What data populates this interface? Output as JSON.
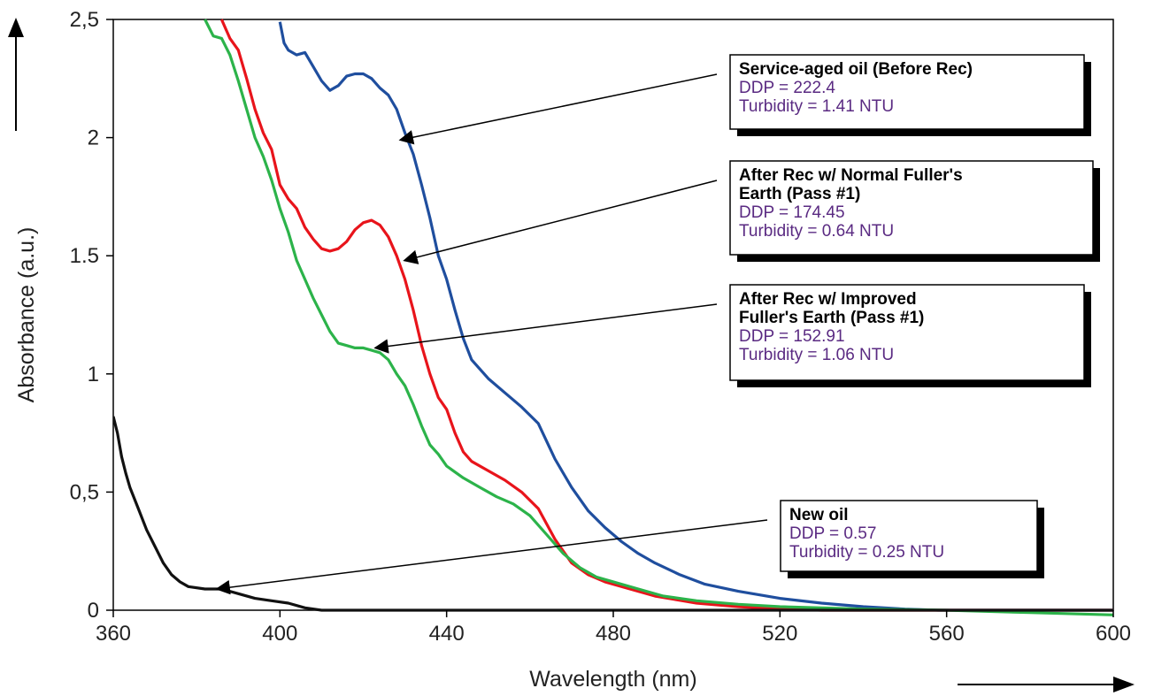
{
  "chart_data": {
    "type": "line",
    "title": "",
    "xlabel": "Wavelength (nm)",
    "ylabel": "Absorbance (a.u.)",
    "xlim": [
      360,
      600
    ],
    "ylim": [
      0,
      2.5
    ],
    "x_ticks": [
      "360",
      "400",
      "440",
      "480",
      "520",
      "560",
      "600"
    ],
    "y_ticks": [
      "0",
      "0,5",
      "1",
      "1.5",
      "2",
      "2,5"
    ],
    "grid": false,
    "series": [
      {
        "color": "#1f4e9e",
        "points": [
          [
            400,
            2.49
          ],
          [
            401,
            2.4
          ],
          [
            402,
            2.37
          ],
          [
            404,
            2.35
          ],
          [
            406,
            2.36
          ],
          [
            408,
            2.3
          ],
          [
            410,
            2.24
          ],
          [
            412,
            2.2
          ],
          [
            414,
            2.22
          ],
          [
            416,
            2.26
          ],
          [
            418,
            2.27
          ],
          [
            420,
            2.27
          ],
          [
            422,
            2.25
          ],
          [
            424,
            2.21
          ],
          [
            426,
            2.18
          ],
          [
            428,
            2.12
          ],
          [
            430,
            2.02
          ],
          [
            432,
            1.93
          ],
          [
            434,
            1.8
          ],
          [
            436,
            1.66
          ],
          [
            438,
            1.5
          ],
          [
            440,
            1.4
          ],
          [
            442,
            1.27
          ],
          [
            444,
            1.15
          ],
          [
            446,
            1.06
          ],
          [
            450,
            0.98
          ],
          [
            454,
            0.92
          ],
          [
            458,
            0.86
          ],
          [
            462,
            0.79
          ],
          [
            466,
            0.64
          ],
          [
            470,
            0.52
          ],
          [
            474,
            0.42
          ],
          [
            478,
            0.35
          ],
          [
            482,
            0.29
          ],
          [
            486,
            0.24
          ],
          [
            490,
            0.2
          ],
          [
            496,
            0.15
          ],
          [
            502,
            0.11
          ],
          [
            510,
            0.08
          ],
          [
            520,
            0.05
          ],
          [
            530,
            0.03
          ],
          [
            540,
            0.015
          ],
          [
            550,
            0.005
          ],
          [
            558,
            0.0
          ],
          [
            600,
            0.0
          ]
        ]
      },
      {
        "color": "#e8141b",
        "points": [
          [
            386,
            2.5
          ],
          [
            388,
            2.42
          ],
          [
            390,
            2.37
          ],
          [
            392,
            2.25
          ],
          [
            394,
            2.12
          ],
          [
            396,
            2.02
          ],
          [
            398,
            1.95
          ],
          [
            400,
            1.8
          ],
          [
            402,
            1.74
          ],
          [
            404,
            1.7
          ],
          [
            406,
            1.62
          ],
          [
            408,
            1.57
          ],
          [
            410,
            1.53
          ],
          [
            412,
            1.52
          ],
          [
            414,
            1.53
          ],
          [
            416,
            1.56
          ],
          [
            418,
            1.61
          ],
          [
            420,
            1.64
          ],
          [
            422,
            1.65
          ],
          [
            424,
            1.63
          ],
          [
            426,
            1.58
          ],
          [
            428,
            1.5
          ],
          [
            430,
            1.4
          ],
          [
            432,
            1.27
          ],
          [
            434,
            1.12
          ],
          [
            436,
            1.0
          ],
          [
            438,
            0.9
          ],
          [
            440,
            0.85
          ],
          [
            442,
            0.75
          ],
          [
            444,
            0.67
          ],
          [
            446,
            0.63
          ],
          [
            450,
            0.59
          ],
          [
            454,
            0.55
          ],
          [
            458,
            0.5
          ],
          [
            462,
            0.43
          ],
          [
            466,
            0.3
          ],
          [
            470,
            0.2
          ],
          [
            474,
            0.15
          ],
          [
            478,
            0.12
          ],
          [
            484,
            0.09
          ],
          [
            490,
            0.06
          ],
          [
            500,
            0.03
          ],
          [
            510,
            0.015
          ],
          [
            520,
            0.005
          ],
          [
            530,
            0.0
          ],
          [
            600,
            0.0
          ]
        ]
      },
      {
        "color": "#2cb34a",
        "points": [
          [
            382,
            2.5
          ],
          [
            384,
            2.43
          ],
          [
            386,
            2.42
          ],
          [
            388,
            2.35
          ],
          [
            390,
            2.24
          ],
          [
            392,
            2.12
          ],
          [
            394,
            2.0
          ],
          [
            396,
            1.92
          ],
          [
            398,
            1.82
          ],
          [
            400,
            1.7
          ],
          [
            402,
            1.6
          ],
          [
            404,
            1.48
          ],
          [
            406,
            1.4
          ],
          [
            408,
            1.32
          ],
          [
            410,
            1.25
          ],
          [
            412,
            1.18
          ],
          [
            414,
            1.13
          ],
          [
            416,
            1.12
          ],
          [
            418,
            1.11
          ],
          [
            420,
            1.11
          ],
          [
            422,
            1.1
          ],
          [
            424,
            1.09
          ],
          [
            426,
            1.06
          ],
          [
            428,
            1.0
          ],
          [
            430,
            0.95
          ],
          [
            432,
            0.87
          ],
          [
            434,
            0.78
          ],
          [
            436,
            0.7
          ],
          [
            438,
            0.66
          ],
          [
            440,
            0.61
          ],
          [
            444,
            0.56
          ],
          [
            448,
            0.52
          ],
          [
            452,
            0.48
          ],
          [
            456,
            0.45
          ],
          [
            460,
            0.4
          ],
          [
            464,
            0.32
          ],
          [
            468,
            0.24
          ],
          [
            472,
            0.18
          ],
          [
            476,
            0.14
          ],
          [
            480,
            0.12
          ],
          [
            486,
            0.09
          ],
          [
            492,
            0.06
          ],
          [
            500,
            0.04
          ],
          [
            510,
            0.025
          ],
          [
            520,
            0.015
          ],
          [
            530,
            0.01
          ],
          [
            540,
            0.005
          ],
          [
            560,
            0.0
          ],
          [
            580,
            -0.01
          ],
          [
            600,
            -0.02
          ]
        ]
      },
      {
        "color": "#111111",
        "points": [
          [
            360,
            0.82
          ],
          [
            361,
            0.75
          ],
          [
            362,
            0.65
          ],
          [
            363,
            0.58
          ],
          [
            364,
            0.52
          ],
          [
            366,
            0.43
          ],
          [
            368,
            0.34
          ],
          [
            370,
            0.27
          ],
          [
            372,
            0.2
          ],
          [
            374,
            0.15
          ],
          [
            376,
            0.12
          ],
          [
            378,
            0.1
          ],
          [
            382,
            0.09
          ],
          [
            386,
            0.09
          ],
          [
            390,
            0.07
          ],
          [
            394,
            0.05
          ],
          [
            398,
            0.04
          ],
          [
            402,
            0.03
          ],
          [
            406,
            0.01
          ],
          [
            410,
            0.0
          ],
          [
            600,
            0.0
          ]
        ]
      }
    ],
    "annotations": [
      {
        "bold_lines": [
          "Service-aged oil (Before Rec)"
        ],
        "lines": [
          "DDP = 222.4",
          "Turbidity = 1.41 NTU"
        ],
        "arrow_to": [
          428,
          1.99
        ]
      },
      {
        "bold_lines": [
          "After Rec w/ Normal Fuller's",
          "Earth (Pass #1)"
        ],
        "lines": [
          "DDP = 174.45",
          "Turbidity = 0.64 NTU"
        ],
        "arrow_to": [
          429,
          1.48
        ]
      },
      {
        "bold_lines": [
          "After Rec w/ Improved",
          "Fuller's Earth (Pass #1)"
        ],
        "lines": [
          "DDP = 152.91",
          "Turbidity = 1.06 NTU"
        ],
        "arrow_to": [
          422,
          1.11
        ]
      },
      {
        "bold_lines": [
          "New oil"
        ],
        "lines": [
          "DDP = 0.57",
          "Turbidity = 0.25 NTU"
        ],
        "arrow_to": [
          384,
          0.09
        ]
      }
    ]
  }
}
